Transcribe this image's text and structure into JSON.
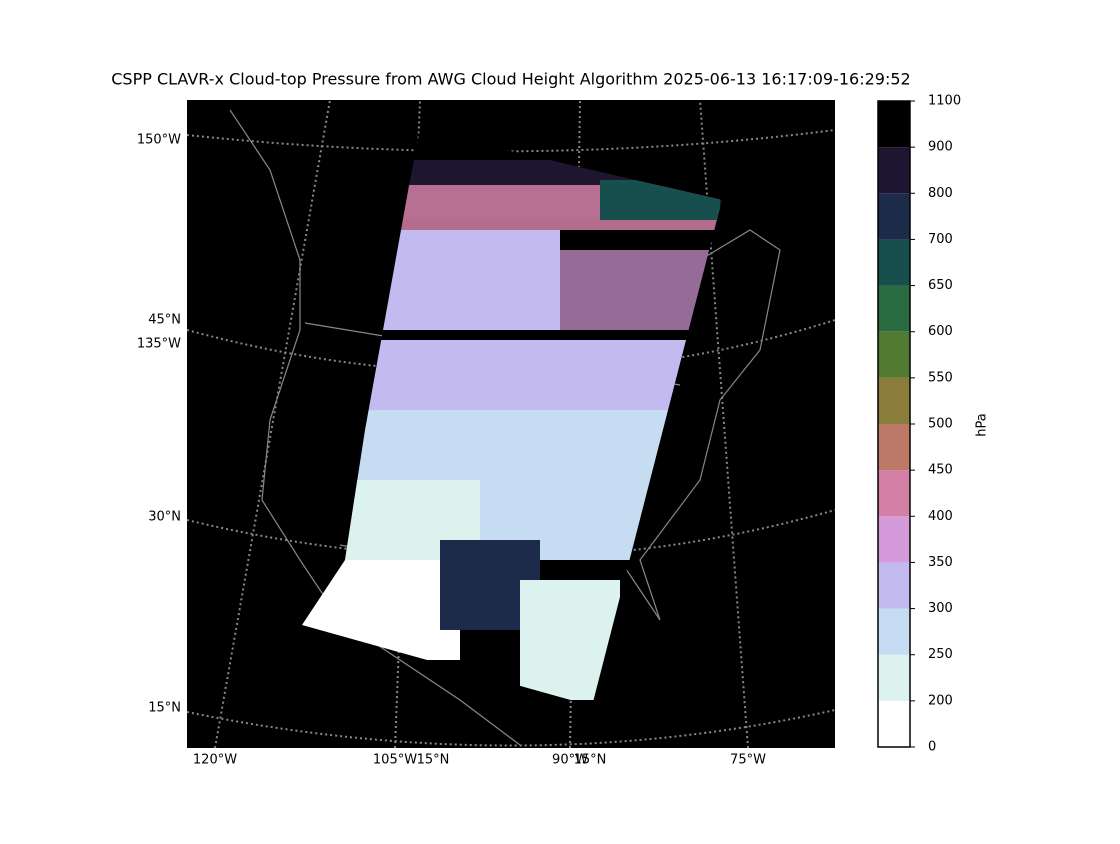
{
  "title": "CSPP CLAVR-x Cloud-top Pressure from AWG Cloud Height Algorithm 2025-06-13 16:17:09-16:29:52",
  "map": {
    "left_labels": [
      "150°W",
      "45°N",
      "135°W",
      "30°N",
      "15°N"
    ],
    "bottom_labels": [
      "120°W",
      "105°W",
      "15°N",
      "90°W",
      "15°N",
      "75°W"
    ]
  },
  "colorbar": {
    "label": "hPa",
    "ticks": [
      0,
      200,
      250,
      300,
      350,
      400,
      450,
      500,
      550,
      600,
      650,
      700,
      800,
      900,
      1100
    ],
    "colors": [
      "#ffffff",
      "#dcf2ee",
      "#c6dcf2",
      "#c3baf0",
      "#d49ad9",
      "#d47fa6",
      "#bd7968",
      "#8a7c3a",
      "#537a32",
      "#2a6b40",
      "#174f4f",
      "#1c2b4a",
      "#1e1530",
      "#000000"
    ]
  }
}
